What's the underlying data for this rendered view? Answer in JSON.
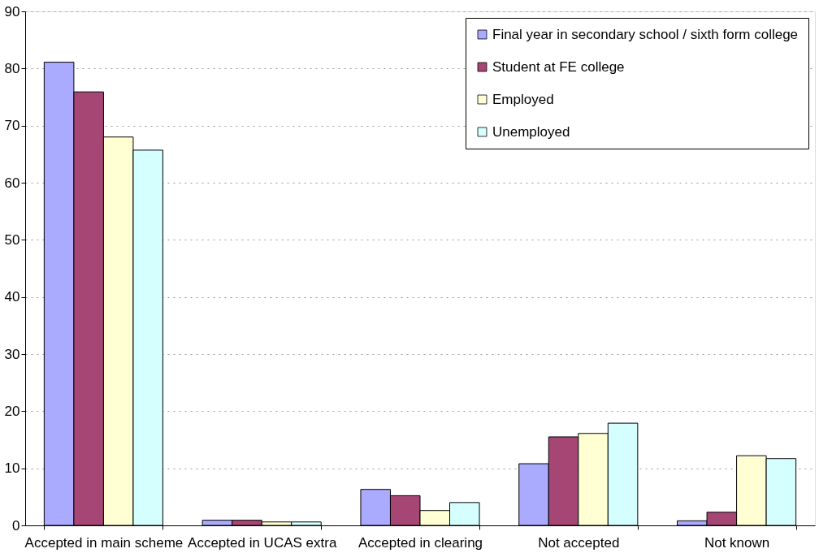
{
  "chart_data": {
    "type": "bar",
    "categories": [
      "Accepted in main scheme",
      "Accepted in UCAS extra",
      "Accepted in clearing",
      "Not accepted",
      "Not known"
    ],
    "series": [
      {
        "name": "Final year in secondary school / sixth form college",
        "color": "#aaaaff",
        "values": [
          81.1,
          0.9,
          6.3,
          10.8,
          0.8
        ]
      },
      {
        "name": "Student at FE college",
        "color": "#a64675",
        "values": [
          75.9,
          0.9,
          5.2,
          15.5,
          2.3
        ]
      },
      {
        "name": "Employed",
        "color": "#ffffd3",
        "values": [
          68.0,
          0.6,
          2.6,
          16.1,
          12.2
        ]
      },
      {
        "name": "Unemployed",
        "color": "#d5ffff",
        "values": [
          65.7,
          0.6,
          4.0,
          17.9,
          11.7
        ]
      }
    ],
    "ylim": [
      0,
      90
    ],
    "yticks": [
      0,
      10,
      20,
      30,
      40,
      50,
      60,
      70,
      80,
      90
    ],
    "grid": "y",
    "legend": "top right"
  }
}
